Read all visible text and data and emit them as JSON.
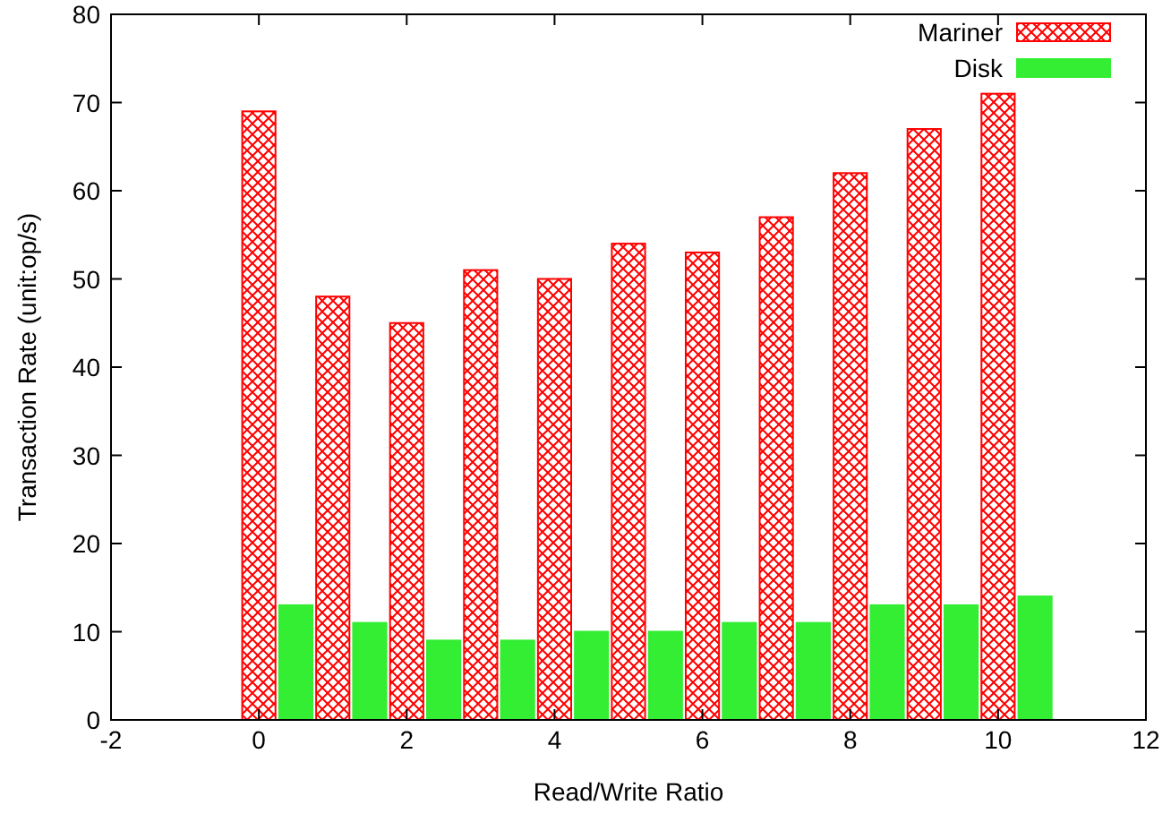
{
  "chart_data": {
    "type": "bar",
    "xlabel": "Read/Write Ratio",
    "ylabel": "Transaction Rate (unit:op/s)",
    "xlim": [
      -2,
      12
    ],
    "xticks": [
      -2,
      0,
      2,
      4,
      6,
      8,
      10,
      12
    ],
    "ylim": [
      0,
      80
    ],
    "yticks": [
      0,
      10,
      20,
      30,
      40,
      50,
      60,
      70,
      80
    ],
    "legend": "top right",
    "grid": false,
    "series": [
      {
        "name": "Mariner",
        "color": "#ff0000",
        "x": [
          0,
          1,
          2,
          3,
          4,
          5,
          6,
          7,
          8,
          9,
          10
        ],
        "values": [
          69,
          48,
          45,
          51,
          50,
          54,
          53,
          57,
          62,
          67,
          71
        ]
      },
      {
        "name": "Disk",
        "color": "#33ee33",
        "x": [
          0.5,
          1.5,
          2.5,
          3.5,
          4.5,
          5.5,
          6.5,
          7.5,
          8.5,
          9.5,
          10.5
        ],
        "values": [
          13,
          11,
          9,
          9,
          10,
          10,
          11,
          11,
          13,
          13,
          14
        ]
      }
    ]
  }
}
